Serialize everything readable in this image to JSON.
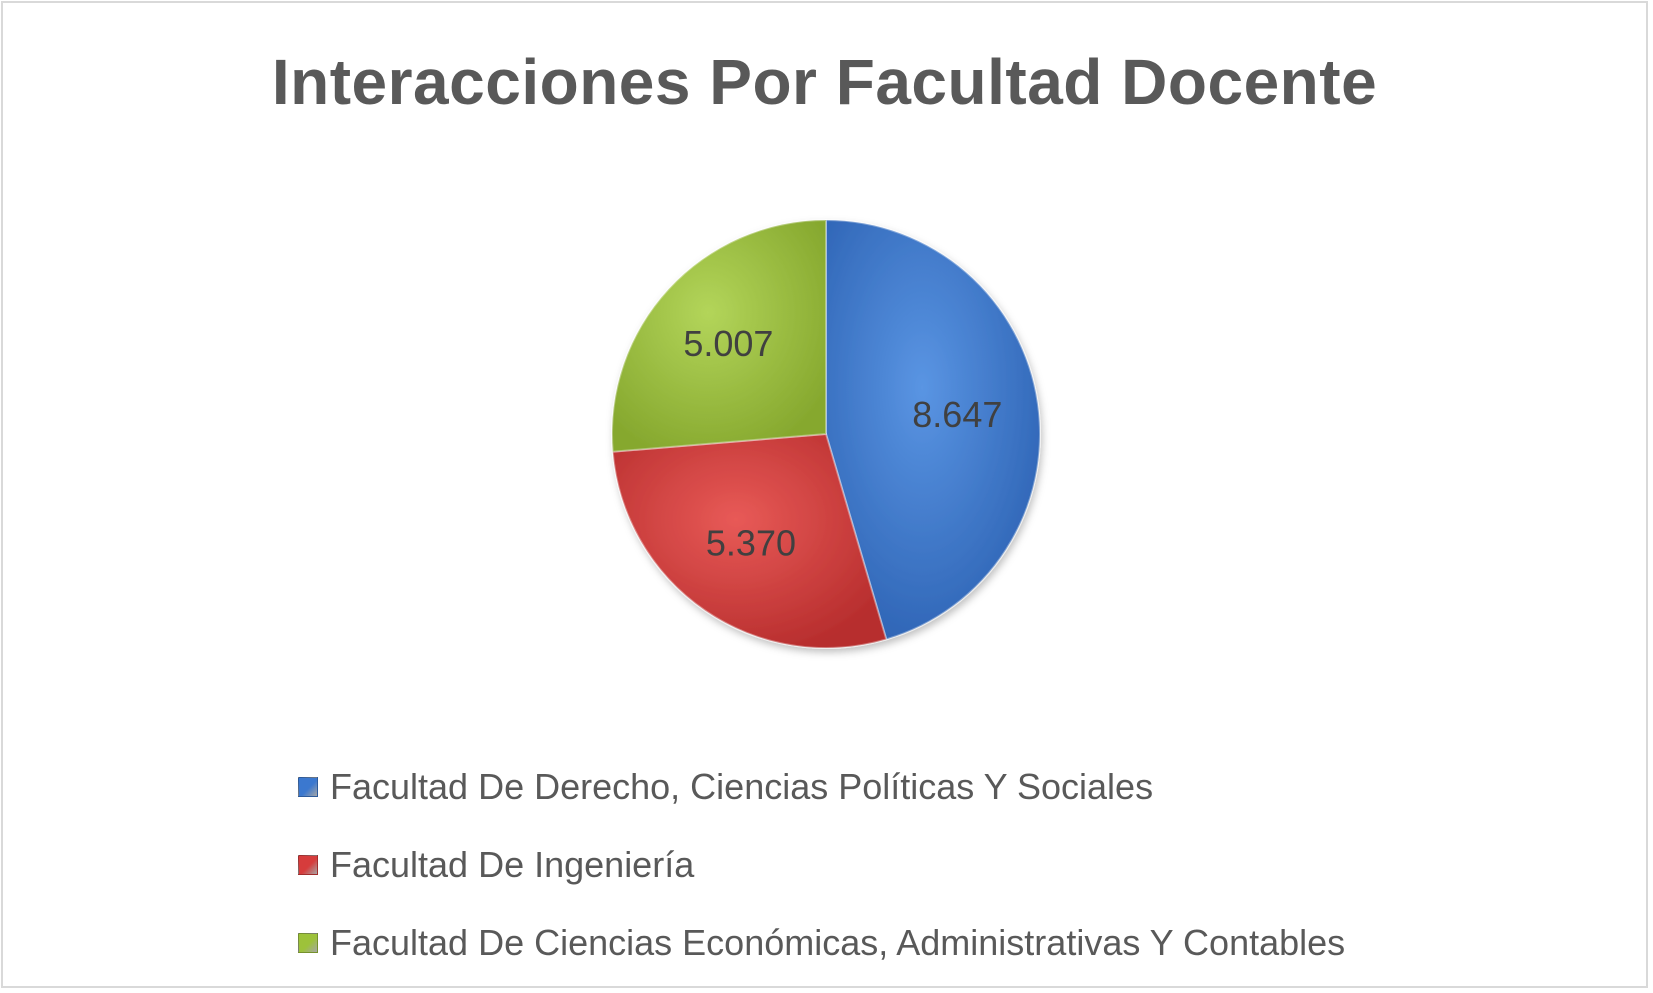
{
  "chart_data": {
    "type": "pie",
    "title": "Interacciones Por Facultad Docente",
    "slices": [
      {
        "label": "Facultad De Derecho, Ciencias Políticas Y Sociales",
        "value": 8647,
        "display": "8.647",
        "color": "#3b78cf"
      },
      {
        "label": "Facultad De Ingeniería",
        "value": 5370,
        "display": "5.370",
        "color": "#d63c3c"
      },
      {
        "label": "Facultad De Ciencias Económicas, Administrativas Y Contables",
        "value": 5007,
        "display": "5.007",
        "color": "#9dc23a"
      }
    ],
    "legend_position": "bottom",
    "start_angle": "12 o'clock",
    "direction": "clockwise"
  }
}
